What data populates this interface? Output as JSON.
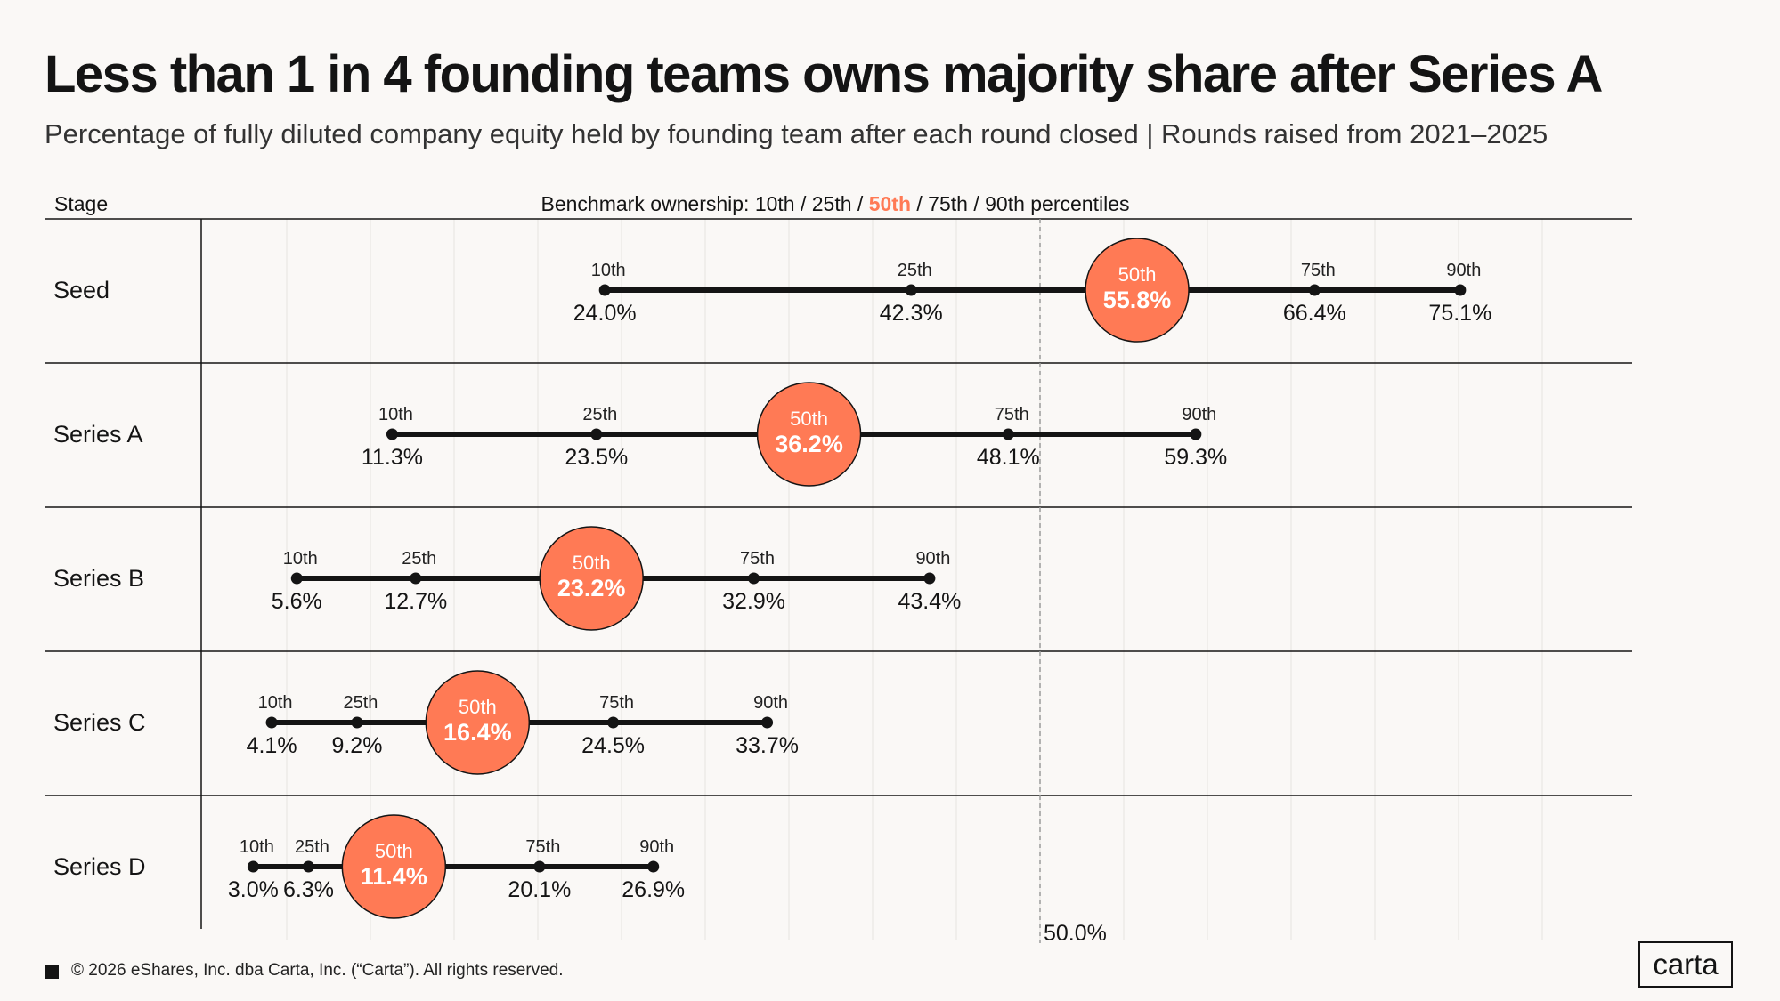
{
  "title": "Less than 1 in 4 founding teams owns majority share after Series A",
  "subtitle": "Percentage of fully diluted company equity held by founding team after each round closed | Rounds raised from 2021–2025",
  "footer": {
    "copyright": "© 2026 eShares, Inc. dba Carta, Inc. (“Carta”). All rights reserved.",
    "logo": "carta"
  },
  "colors": {
    "accent": "#FF7A55",
    "line": "#141414",
    "grid": "#e6e3e0",
    "background": "#faf8f6"
  },
  "chart_data": {
    "type": "range",
    "column_header": "Stage",
    "header_parts": [
      {
        "text": "Benchmark ownership: 10th / 25th / ",
        "highlight": false
      },
      {
        "text": "50th",
        "highlight": true
      },
      {
        "text": " / 75th / 90th percentiles",
        "highlight": false
      }
    ],
    "percentile_labels": [
      "10th",
      "25th",
      "50th",
      "75th",
      "90th"
    ],
    "xlim": [
      0,
      80
    ],
    "reference_line": {
      "value": 50,
      "label": "50.0%"
    },
    "rows": [
      {
        "stage": "Seed",
        "values": [
          24.0,
          42.3,
          55.8,
          66.4,
          75.1
        ],
        "labels": [
          "24.0%",
          "42.3%",
          "55.8%",
          "66.4%",
          "75.1%"
        ]
      },
      {
        "stage": "Series A",
        "values": [
          11.3,
          23.5,
          36.2,
          48.1,
          59.3
        ],
        "labels": [
          "11.3%",
          "23.5%",
          "36.2%",
          "48.1%",
          "59.3%"
        ]
      },
      {
        "stage": "Series B",
        "values": [
          5.6,
          12.7,
          23.2,
          32.9,
          43.4
        ],
        "labels": [
          "5.6%",
          "12.7%",
          "23.2%",
          "32.9%",
          "43.4%"
        ]
      },
      {
        "stage": "Series C",
        "values": [
          4.1,
          9.2,
          16.4,
          24.5,
          33.7
        ],
        "labels": [
          "4.1%",
          "9.2%",
          "16.4%",
          "24.5%",
          "33.7%"
        ]
      },
      {
        "stage": "Series D",
        "values": [
          3.0,
          6.3,
          11.4,
          20.1,
          26.9
        ],
        "labels": [
          "3.0%",
          "6.3%",
          "11.4%",
          "20.1%",
          "26.9%"
        ]
      }
    ]
  }
}
